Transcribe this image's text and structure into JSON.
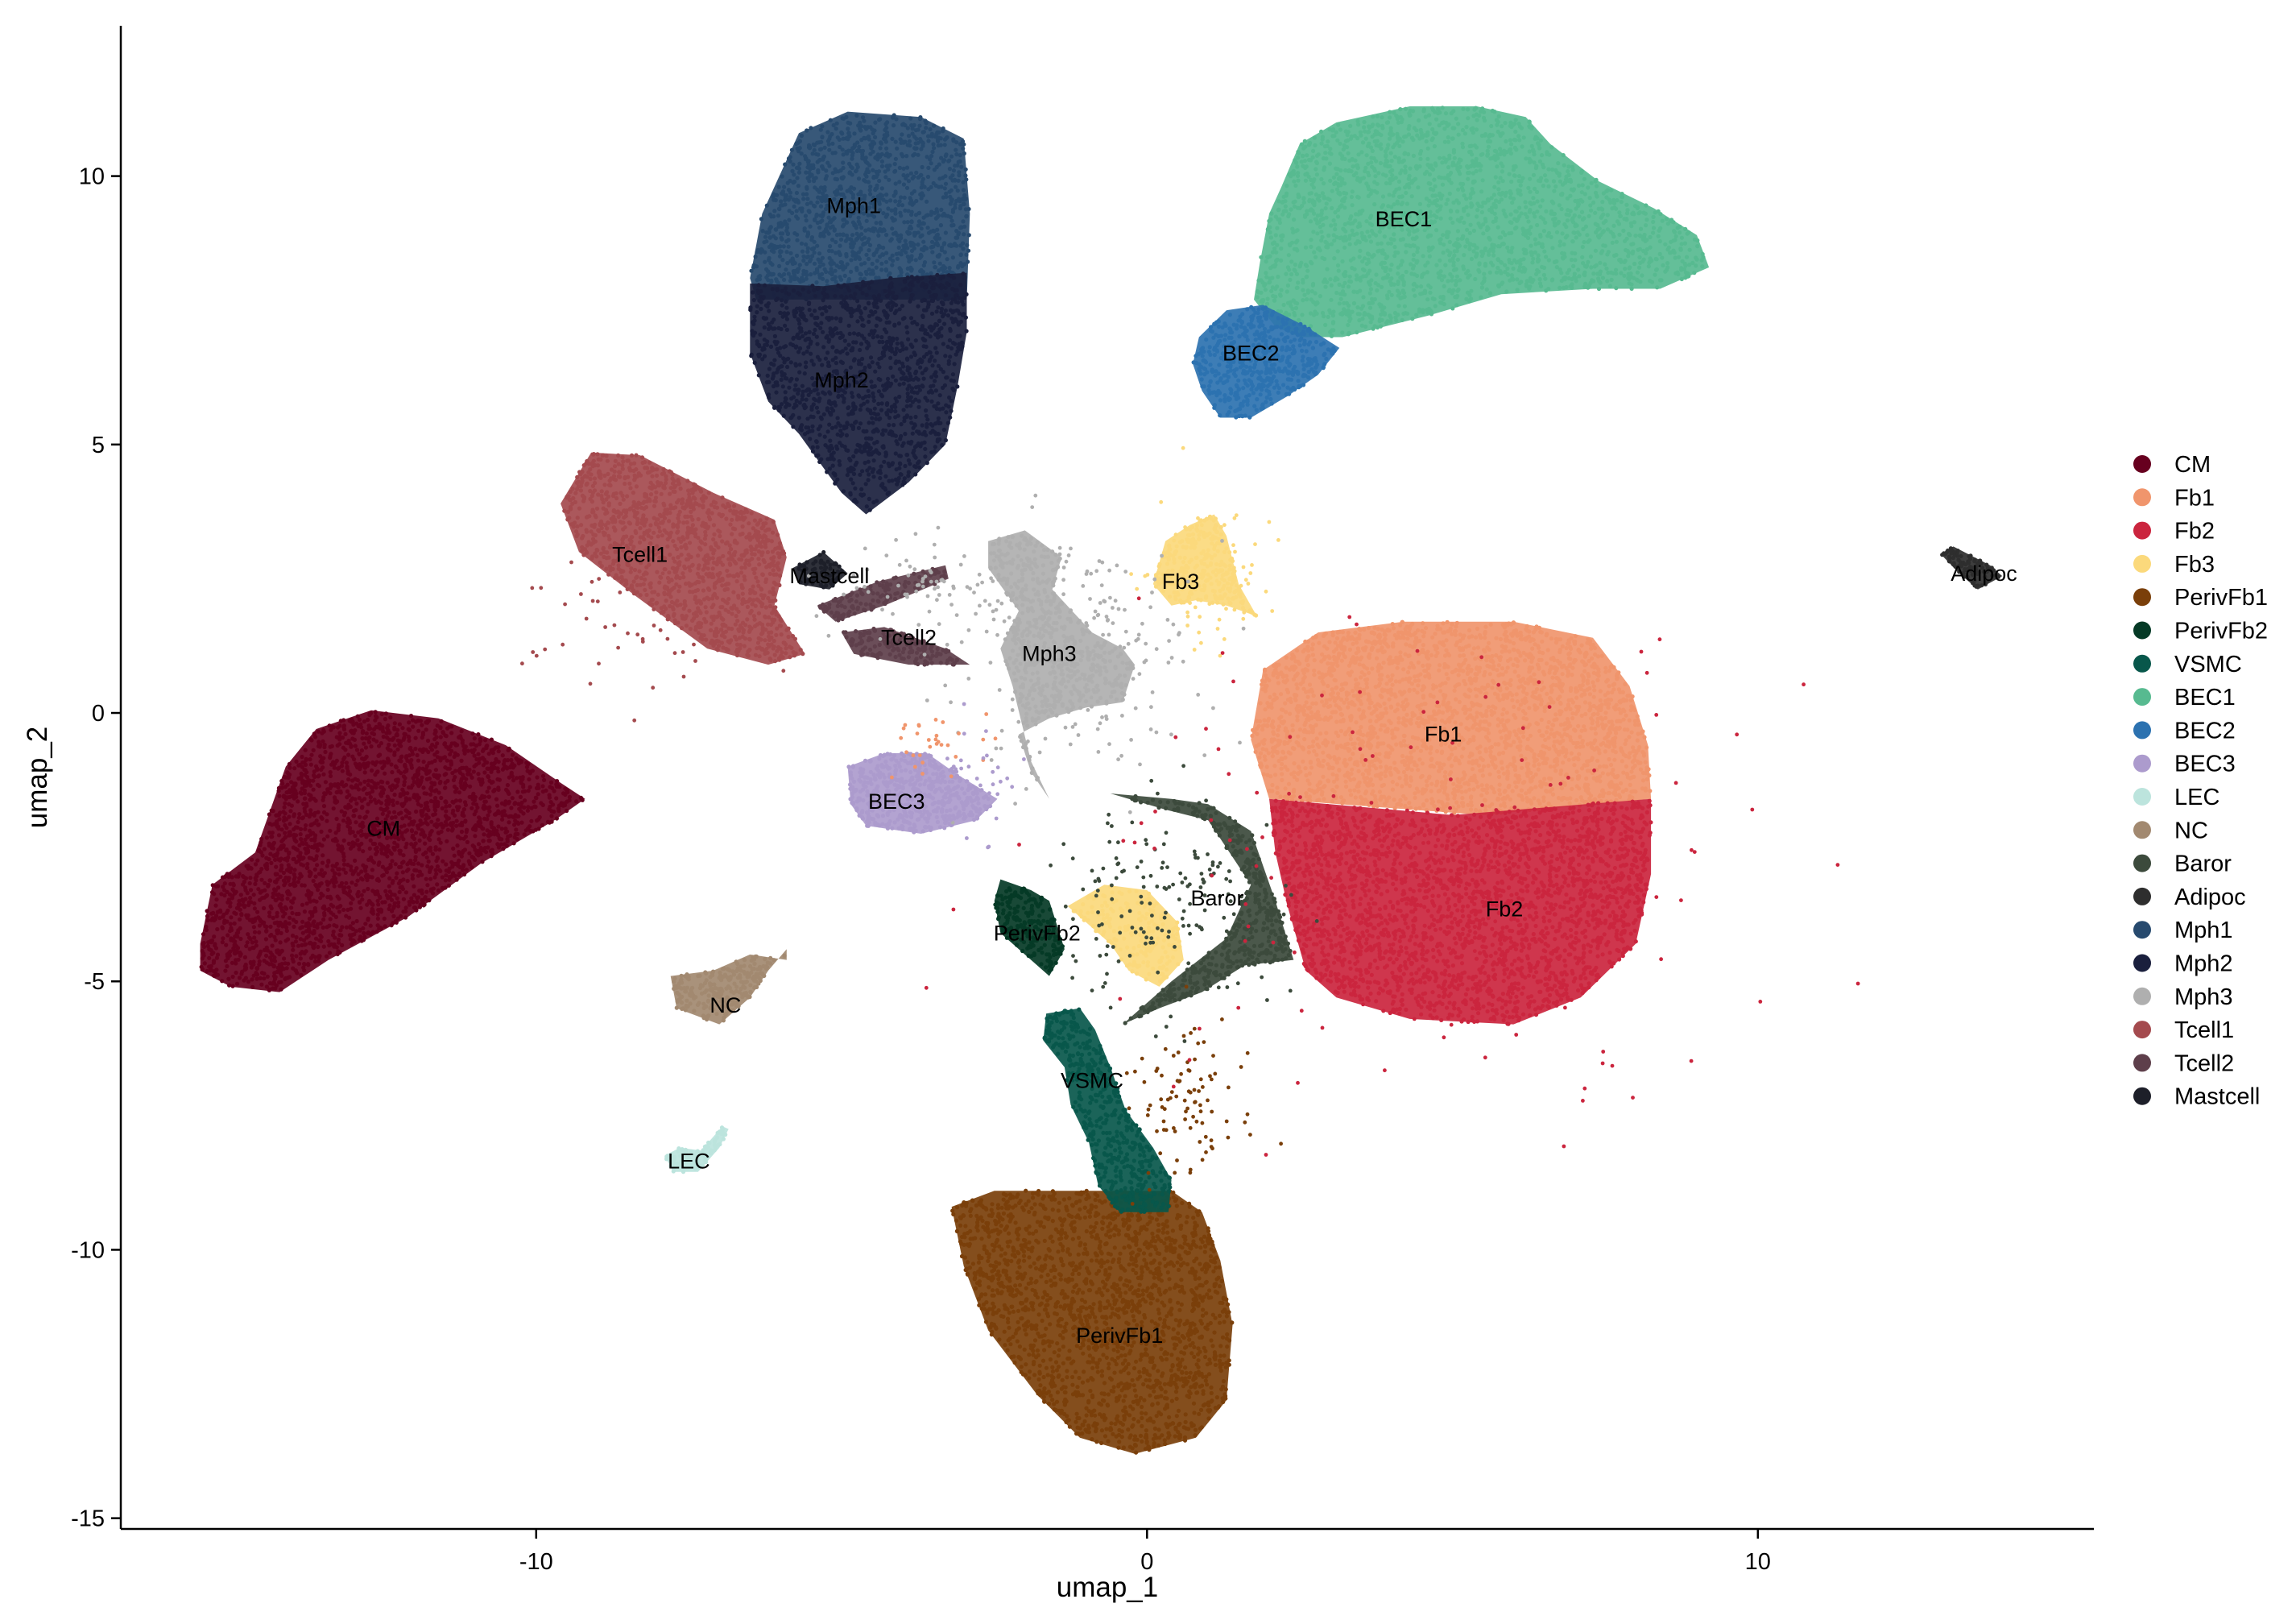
{
  "chart_data": {
    "type": "scatter",
    "xlabel": "umap_1",
    "ylabel": "umap_2",
    "xlim": [
      -16.8,
      15.5
    ],
    "ylim": [
      -15.2,
      12.8
    ],
    "xticks": [
      -10,
      0,
      10
    ],
    "yticks": [
      10,
      5,
      0,
      -5,
      -10,
      -15
    ],
    "grid": false,
    "legend_position": "right",
    "series": [
      {
        "name": "CM",
        "color": "#67001F"
      },
      {
        "name": "Fb1",
        "color": "#F0956C"
      },
      {
        "name": "Fb2",
        "color": "#CB253E"
      },
      {
        "name": "Fb3",
        "color": "#FBD97C"
      },
      {
        "name": "PerivFb1",
        "color": "#7A3F0A"
      },
      {
        "name": "PerivFb2",
        "color": "#053A26"
      },
      {
        "name": "VSMC",
        "color": "#08574B"
      },
      {
        "name": "BEC1",
        "color": "#57BA90"
      },
      {
        "name": "BEC2",
        "color": "#2C72B0"
      },
      {
        "name": "BEC3",
        "color": "#AC9BCD"
      },
      {
        "name": "LEC",
        "color": "#BCE4DD"
      },
      {
        "name": "NC",
        "color": "#A28970"
      },
      {
        "name": "Baror",
        "color": "#3C4A3C"
      },
      {
        "name": "Adipoc",
        "color": "#2E2E2E"
      },
      {
        "name": "Mph1",
        "color": "#274A6E"
      },
      {
        "name": "Mph2",
        "color": "#1A1F3D"
      },
      {
        "name": "Mph3",
        "color": "#AFAFAF"
      },
      {
        "name": "Tcell1",
        "color": "#A44A4E"
      },
      {
        "name": "Tcell2",
        "color": "#5E3F4B"
      },
      {
        "name": "Mastcell",
        "color": "#1D1F29"
      }
    ],
    "cluster_labels": [
      {
        "text": "Mph1",
        "x": -4.8,
        "y": 9.45
      },
      {
        "text": "BEC1",
        "x": 4.2,
        "y": 9.2
      },
      {
        "text": "BEC2",
        "x": 1.7,
        "y": 6.7
      },
      {
        "text": "Mph2",
        "x": -5.0,
        "y": 6.2
      },
      {
        "text": "Tcell1",
        "x": -8.3,
        "y": 2.95
      },
      {
        "text": "Mastcell",
        "x": -5.2,
        "y": 2.55
      },
      {
        "text": "Fb3",
        "x": 0.55,
        "y": 2.45
      },
      {
        "text": "Tcell2",
        "x": -3.9,
        "y": 1.4
      },
      {
        "text": "Mph3",
        "x": -1.6,
        "y": 1.1
      },
      {
        "text": "Fb1",
        "x": 4.85,
        "y": -0.4
      },
      {
        "text": "CM",
        "x": -12.5,
        "y": -2.15
      },
      {
        "text": "BEC3",
        "x": -4.1,
        "y": -1.65
      },
      {
        "text": "Baror",
        "x": 1.15,
        "y": -3.45
      },
      {
        "text": "Fb2",
        "x": 5.85,
        "y": -3.65
      },
      {
        "text": "PerivFb2",
        "x": -1.8,
        "y": -4.1
      },
      {
        "text": "NC",
        "x": -6.9,
        "y": -5.45
      },
      {
        "text": "Adipoc",
        "x": 13.7,
        "y": 2.6
      },
      {
        "text": "VSMC",
        "x": -0.9,
        "y": -6.85
      },
      {
        "text": "LEC",
        "x": -7.5,
        "y": -8.35
      },
      {
        "text": "PerivFb1",
        "x": -0.45,
        "y": -11.6
      }
    ]
  }
}
